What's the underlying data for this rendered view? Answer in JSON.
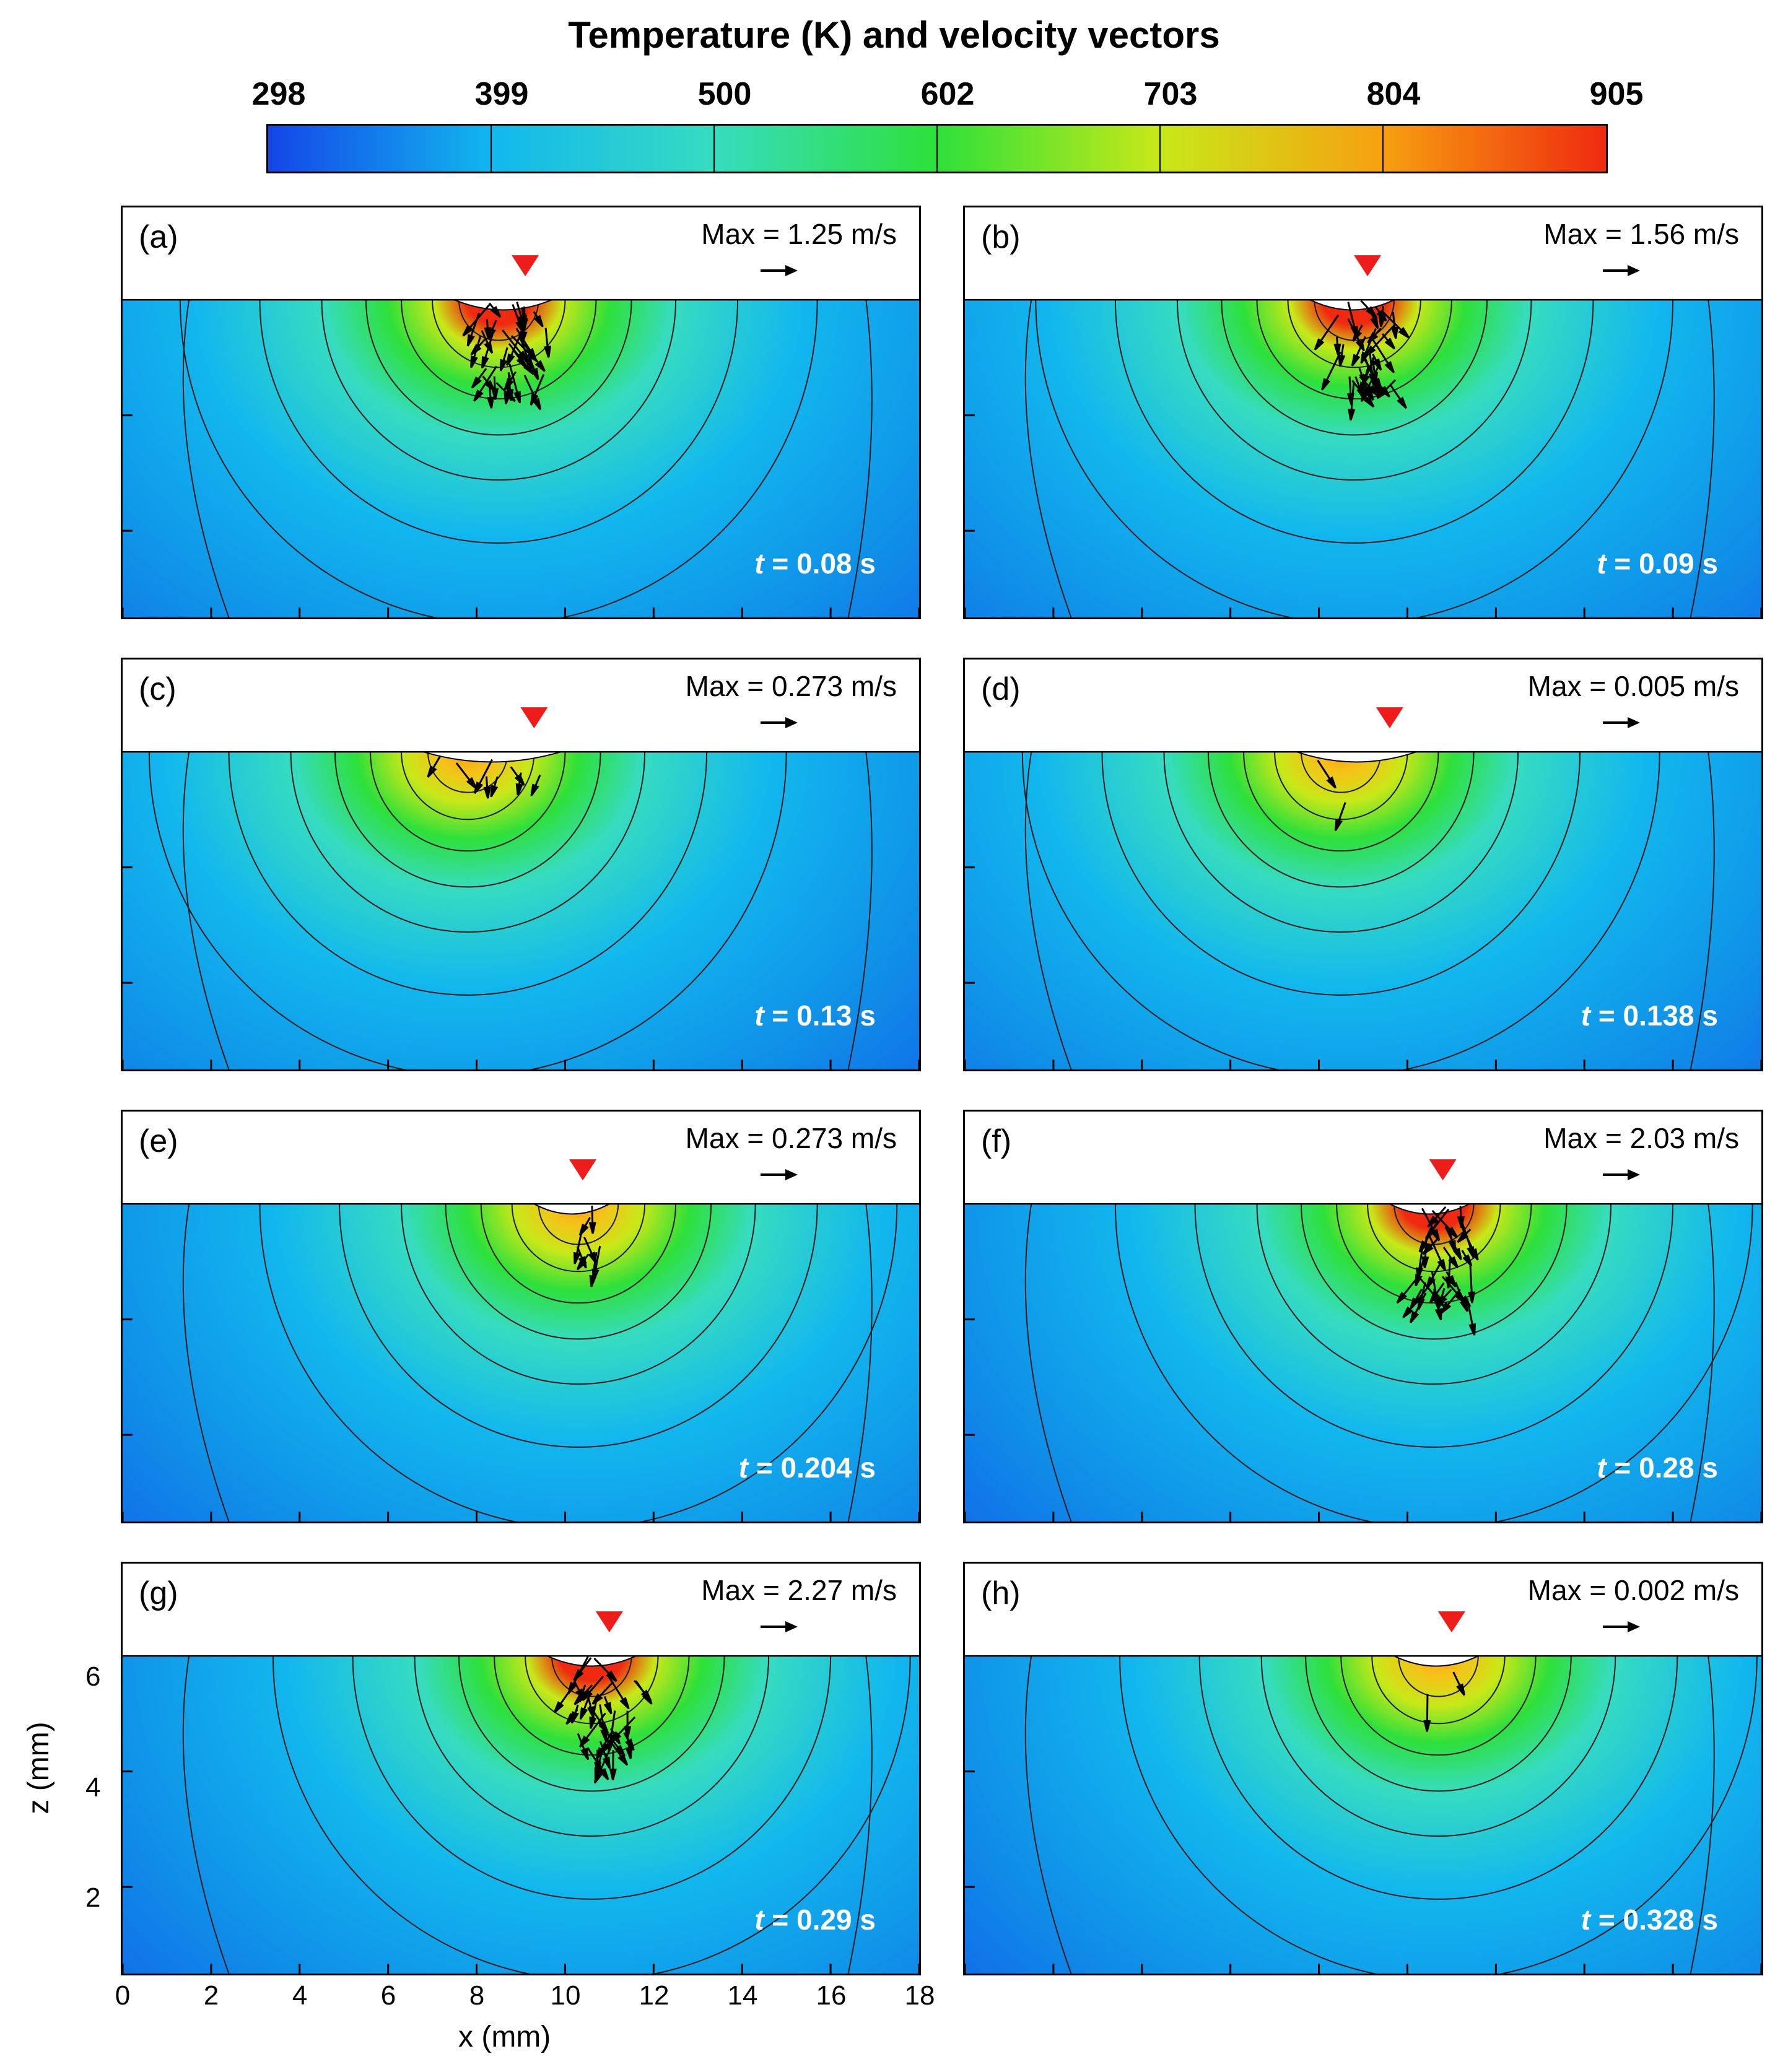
{
  "chart_data": {
    "type": "heatmap",
    "title": "Temperature (K) and velocity vectors",
    "colorbar": {
      "ticks": [
        "298",
        "399",
        "500",
        "602",
        "703",
        "804",
        "905"
      ],
      "min": 298,
      "max": 905,
      "colors": [
        "#1446e8",
        "#12b7ee",
        "#36dcc0",
        "#2ee03a",
        "#c8e818",
        "#f7a010",
        "#ef2a10"
      ]
    },
    "xlabel": "x (mm)",
    "ylabel": "z (mm)",
    "xlim": [
      0,
      18
    ],
    "ylim": [
      0.5,
      7.6
    ],
    "xticks": [
      "0",
      "2",
      "4",
      "6",
      "8",
      "10",
      "12",
      "14",
      "16",
      "18"
    ],
    "yticks": [
      "2",
      "4",
      "6"
    ],
    "surface_z": 6,
    "panels": [
      {
        "label": "(a)",
        "time_value": "0.08 s",
        "max_velocity": "Max = 1.25 m/s",
        "hot_x": 8.5,
        "laser_x": 9.1,
        "depth": 2.0,
        "intensity": 1.0,
        "arrows": "many"
      },
      {
        "label": "(b)",
        "time_value": "0.09 s",
        "max_velocity": "Max = 1.56 m/s",
        "hot_x": 8.8,
        "laser_x": 9.1,
        "depth": 2.0,
        "intensity": 1.0,
        "arrows": "many"
      },
      {
        "label": "(c)",
        "time_value": "0.13 s",
        "max_velocity": "Max = 0.273 m/s",
        "hot_x": 7.8,
        "laser_x": 9.3,
        "depth": 0.6,
        "intensity": 0.82,
        "arrows": "few"
      },
      {
        "label": "(d)",
        "time_value": "0.138 s",
        "max_velocity": "Max = 0.005 m/s",
        "hot_x": 8.5,
        "laser_x": 9.6,
        "depth": 1.2,
        "intensity": 0.78,
        "arrows": "one"
      },
      {
        "label": "(e)",
        "time_value": "0.204 s",
        "max_velocity": "Max = 0.273 m/s",
        "hot_x": 10.3,
        "laser_x": 10.4,
        "depth": 1.4,
        "intensity": 0.78,
        "arrows": "few"
      },
      {
        "label": "(f)",
        "time_value": "0.28 s",
        "max_velocity": "Max = 2.03 m/s",
        "hot_x": 10.6,
        "laser_x": 10.8,
        "depth": 2.2,
        "intensity": 1.0,
        "arrows": "many"
      },
      {
        "label": "(g)",
        "time_value": "0.29 s",
        "max_velocity": "Max = 2.27 m/s",
        "hot_x": 10.6,
        "laser_x": 11.0,
        "depth": 2.2,
        "intensity": 1.0,
        "arrows": "many"
      },
      {
        "label": "(h)",
        "time_value": "0.328 s",
        "max_velocity": "Max = 0.002 m/s",
        "hot_x": 10.7,
        "laser_x": 11.0,
        "depth": 1.4,
        "intensity": 0.75,
        "arrows": "one"
      }
    ]
  }
}
